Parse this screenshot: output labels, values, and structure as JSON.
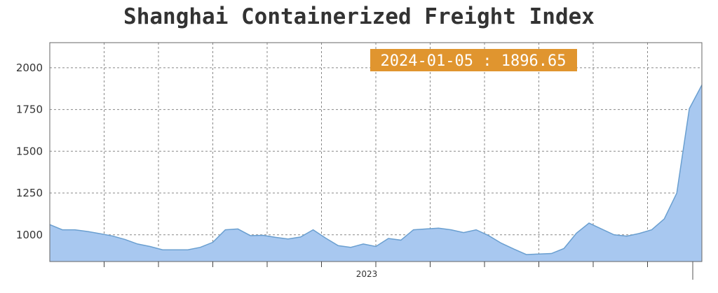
{
  "chart_data": {
    "type": "area",
    "title": "Shanghai Containerized Freight Index",
    "xlabel": "",
    "ylabel": "",
    "x_tick_labels": [
      "2023"
    ],
    "yticks": [
      1000,
      1250,
      1500,
      1750,
      2000
    ],
    "ylim": [
      840,
      2150
    ],
    "grid": true,
    "area_color": "#a8c8f0",
    "line_color": "#6a9fd0",
    "tooltip": {
      "text": "2024-01-05 : 1896.65",
      "background": "#e0952f"
    },
    "series": [
      {
        "values": [
          1061,
          1030,
          1030,
          1020,
          1007,
          993,
          972,
          945,
          930,
          910,
          910,
          910,
          925,
          955,
          1030,
          1035,
          995,
          997,
          985,
          975,
          987,
          1030,
          980,
          935,
          925,
          945,
          930,
          978,
          968,
          1030,
          1035,
          1040,
          1030,
          1013,
          1030,
          995,
          950,
          915,
          882,
          885,
          888,
          918,
          1010,
          1070,
          1035,
          1000,
          992,
          1008,
          1030,
          1095,
          1250,
          1755,
          1896.65
        ]
      }
    ]
  }
}
